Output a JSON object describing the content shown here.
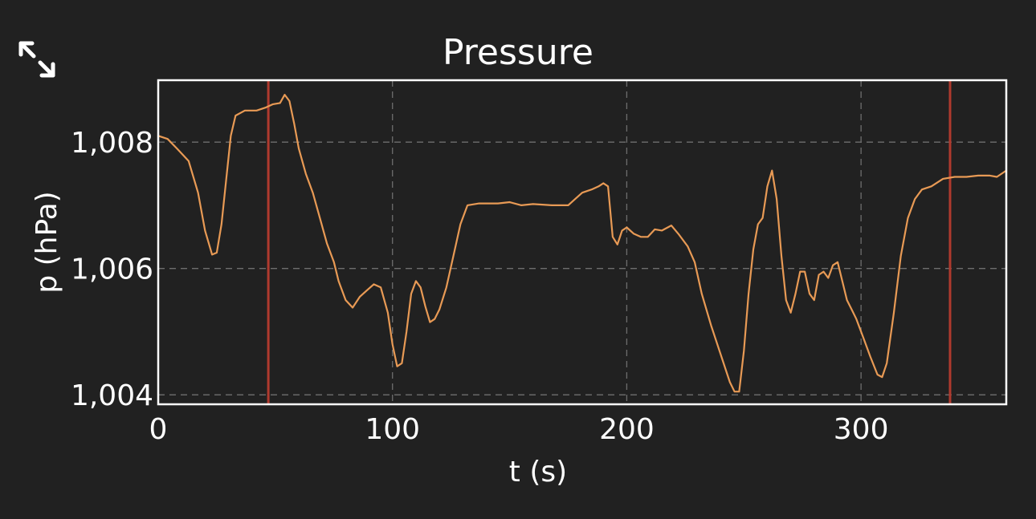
{
  "colors": {
    "background": "#212121",
    "frame": "#ffffff",
    "grid": "#6e6e6e",
    "series": "#e89a55",
    "marker": "#b03a2e",
    "text": "#ffffff"
  },
  "controls": {
    "expand_icon": "expand-diagonal-arrows-icon"
  },
  "chart_data": {
    "type": "line",
    "title": "Pressure",
    "xlabel": "t (s)",
    "ylabel": "p (hPa)",
    "xlim": [
      0,
      362
    ],
    "ylim": [
      1003.85,
      1008.98
    ],
    "grid": true,
    "x_ticks": [
      {
        "value": 0,
        "label": "0"
      },
      {
        "value": 100,
        "label": "100"
      },
      {
        "value": 200,
        "label": "200"
      },
      {
        "value": 300,
        "label": "300"
      }
    ],
    "y_ticks": [
      {
        "value": 1004,
        "label": "1,004"
      },
      {
        "value": 1006,
        "label": "1,006"
      },
      {
        "value": 1008,
        "label": "1,008"
      }
    ],
    "markers_x": [
      47,
      338
    ],
    "series": [
      {
        "points": [
          [
            0,
            1008.1
          ],
          [
            4,
            1008.05
          ],
          [
            8,
            1007.9
          ],
          [
            13,
            1007.7
          ],
          [
            17,
            1007.2
          ],
          [
            20,
            1006.6
          ],
          [
            23,
            1006.22
          ],
          [
            25,
            1006.25
          ],
          [
            27,
            1006.7
          ],
          [
            29,
            1007.4
          ],
          [
            31,
            1008.1
          ],
          [
            33,
            1008.42
          ],
          [
            37,
            1008.5
          ],
          [
            42,
            1008.5
          ],
          [
            46,
            1008.55
          ],
          [
            49,
            1008.6
          ],
          [
            52,
            1008.62
          ],
          [
            54,
            1008.75
          ],
          [
            56,
            1008.65
          ],
          [
            58,
            1008.3
          ],
          [
            60,
            1007.9
          ],
          [
            63,
            1007.5
          ],
          [
            66,
            1007.2
          ],
          [
            69,
            1006.8
          ],
          [
            72,
            1006.4
          ],
          [
            75,
            1006.1
          ],
          [
            77,
            1005.8
          ],
          [
            80,
            1005.5
          ],
          [
            83,
            1005.38
          ],
          [
            86,
            1005.55
          ],
          [
            89,
            1005.65
          ],
          [
            92,
            1005.75
          ],
          [
            95,
            1005.7
          ],
          [
            98,
            1005.3
          ],
          [
            100,
            1004.8
          ],
          [
            102,
            1004.45
          ],
          [
            104,
            1004.5
          ],
          [
            106,
            1005.0
          ],
          [
            108,
            1005.6
          ],
          [
            110,
            1005.8
          ],
          [
            112,
            1005.7
          ],
          [
            114,
            1005.4
          ],
          [
            116,
            1005.15
          ],
          [
            118,
            1005.2
          ],
          [
            120,
            1005.35
          ],
          [
            123,
            1005.7
          ],
          [
            126,
            1006.2
          ],
          [
            129,
            1006.7
          ],
          [
            132,
            1007.0
          ],
          [
            137,
            1007.03
          ],
          [
            145,
            1007.03
          ],
          [
            150,
            1007.05
          ],
          [
            155,
            1007.0
          ],
          [
            160,
            1007.02
          ],
          [
            168,
            1007.0
          ],
          [
            175,
            1007.0
          ],
          [
            178,
            1007.1
          ],
          [
            181,
            1007.2
          ],
          [
            185,
            1007.25
          ],
          [
            188,
            1007.3
          ],
          [
            190,
            1007.35
          ],
          [
            192,
            1007.3
          ],
          [
            193,
            1006.9
          ],
          [
            194,
            1006.5
          ],
          [
            196,
            1006.38
          ],
          [
            198,
            1006.6
          ],
          [
            200,
            1006.65
          ],
          [
            203,
            1006.55
          ],
          [
            206,
            1006.5
          ],
          [
            209,
            1006.5
          ],
          [
            212,
            1006.62
          ],
          [
            215,
            1006.6
          ],
          [
            219,
            1006.68
          ],
          [
            222,
            1006.55
          ],
          [
            226,
            1006.35
          ],
          [
            229,
            1006.1
          ],
          [
            232,
            1005.6
          ],
          [
            236,
            1005.1
          ],
          [
            240,
            1004.65
          ],
          [
            244,
            1004.2
          ],
          [
            246,
            1004.05
          ],
          [
            248,
            1004.05
          ],
          [
            250,
            1004.7
          ],
          [
            252,
            1005.6
          ],
          [
            254,
            1006.3
          ],
          [
            256,
            1006.7
          ],
          [
            258,
            1006.8
          ],
          [
            260,
            1007.3
          ],
          [
            262,
            1007.55
          ],
          [
            264,
            1007.1
          ],
          [
            266,
            1006.2
          ],
          [
            268,
            1005.5
          ],
          [
            270,
            1005.3
          ],
          [
            272,
            1005.6
          ],
          [
            274,
            1005.95
          ],
          [
            276,
            1005.95
          ],
          [
            278,
            1005.6
          ],
          [
            280,
            1005.5
          ],
          [
            282,
            1005.9
          ],
          [
            284,
            1005.95
          ],
          [
            286,
            1005.85
          ],
          [
            288,
            1006.05
          ],
          [
            290,
            1006.1
          ],
          [
            292,
            1005.8
          ],
          [
            294,
            1005.5
          ],
          [
            296,
            1005.35
          ],
          [
            298,
            1005.2
          ],
          [
            301,
            1004.9
          ],
          [
            304,
            1004.6
          ],
          [
            307,
            1004.32
          ],
          [
            309,
            1004.28
          ],
          [
            311,
            1004.5
          ],
          [
            314,
            1005.3
          ],
          [
            317,
            1006.2
          ],
          [
            320,
            1006.8
          ],
          [
            323,
            1007.1
          ],
          [
            326,
            1007.25
          ],
          [
            330,
            1007.3
          ],
          [
            335,
            1007.42
          ],
          [
            340,
            1007.45
          ],
          [
            345,
            1007.45
          ],
          [
            350,
            1007.47
          ],
          [
            355,
            1007.47
          ],
          [
            358,
            1007.45
          ],
          [
            362,
            1007.55
          ]
        ]
      }
    ]
  }
}
